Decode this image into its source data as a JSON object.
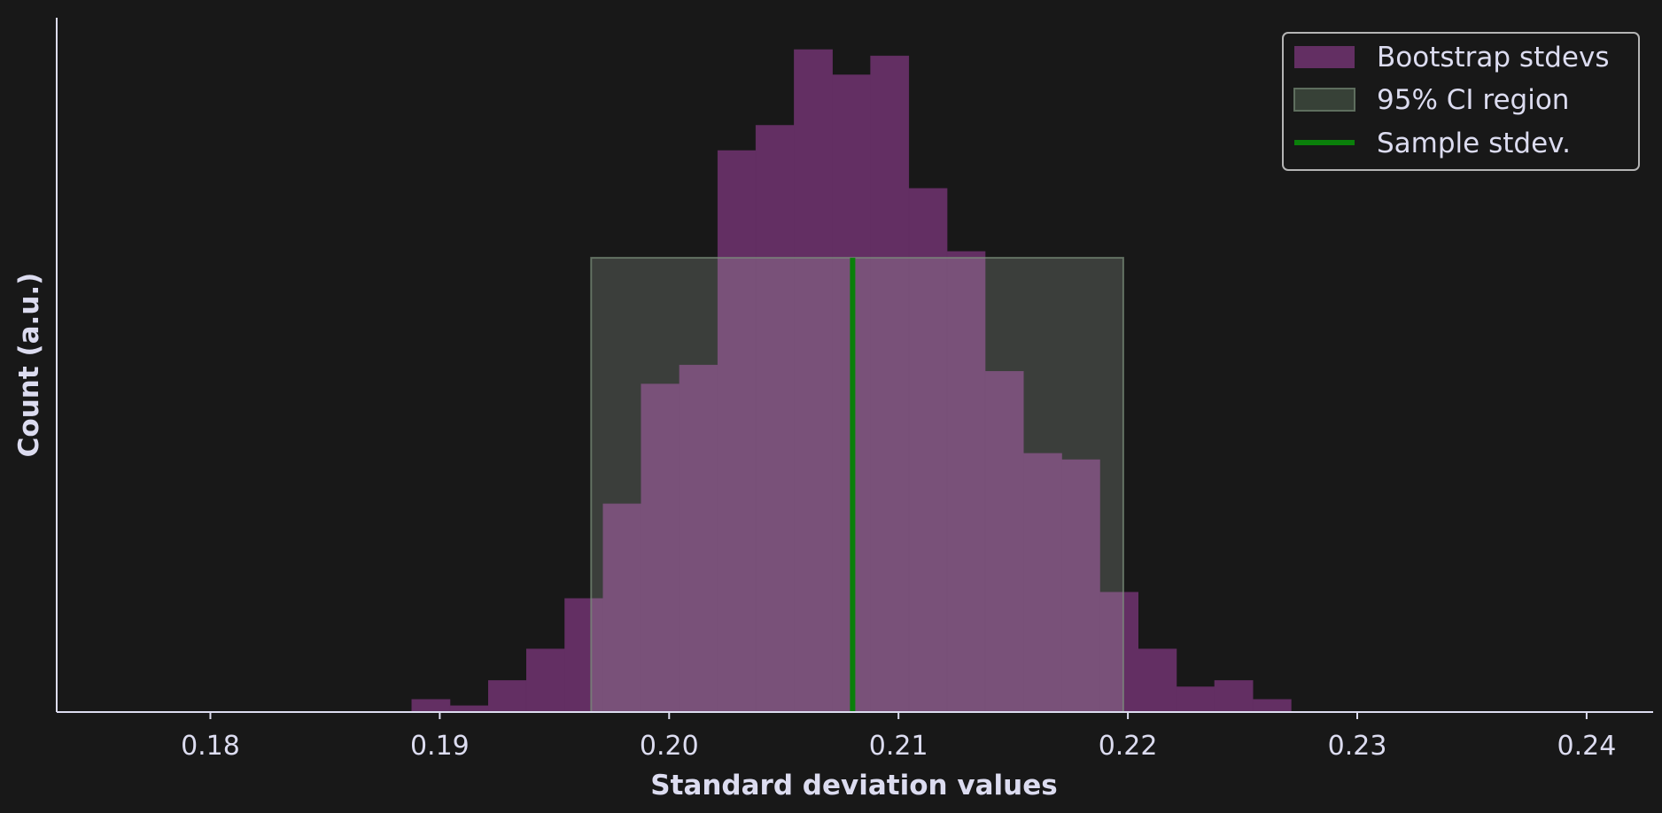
{
  "chart_data": {
    "type": "bar",
    "xlabel": "Standard deviation values",
    "ylabel": "Count (a.u.)",
    "xlim": [
      0.1733,
      0.2429
    ],
    "ylim": [
      0,
      105
    ],
    "x_ticks": [
      "0.18",
      "0.19",
      "0.20",
      "0.21",
      "0.22",
      "0.23",
      "0.24"
    ],
    "x_tick_values": [
      0.18,
      0.19,
      0.2,
      0.21,
      0.22,
      0.23,
      0.24
    ],
    "bins": {
      "edges": [
        0.18878,
        0.19045,
        0.19212,
        0.19378,
        0.19545,
        0.19712,
        0.19878,
        0.20045,
        0.20212,
        0.20378,
        0.20545,
        0.20712,
        0.20878,
        0.21045,
        0.21212,
        0.21378,
        0.21545,
        0.21712,
        0.21878,
        0.22045,
        0.22212,
        0.22378,
        0.22545,
        0.22712
      ],
      "counts": [
        2,
        1,
        5,
        10,
        18,
        33,
        52,
        55,
        89,
        93,
        105,
        101,
        104,
        83,
        73,
        54,
        41,
        40,
        19,
        10,
        4,
        5,
        2
      ]
    },
    "ci_region": {
      "low": 0.1966,
      "high": 0.2198,
      "height": 72
    },
    "sample_stdev": 0.208,
    "colors": {
      "background": "#181818",
      "axis": "#dcdcf0",
      "bars": "#632f63",
      "ci_fill": "#dcf0dc",
      "ci_edge": "#7a8f7a",
      "sample_line": "#0a7f0a"
    },
    "legend": {
      "position": "top-right",
      "entries": [
        {
          "label": "Bootstrap stdevs",
          "kind": "patch",
          "color": "#632f63"
        },
        {
          "label": "95% CI region",
          "kind": "patch",
          "color": "#374137"
        },
        {
          "label": "Sample stdev.",
          "kind": "line",
          "color": "#0a7f0a"
        }
      ]
    }
  }
}
